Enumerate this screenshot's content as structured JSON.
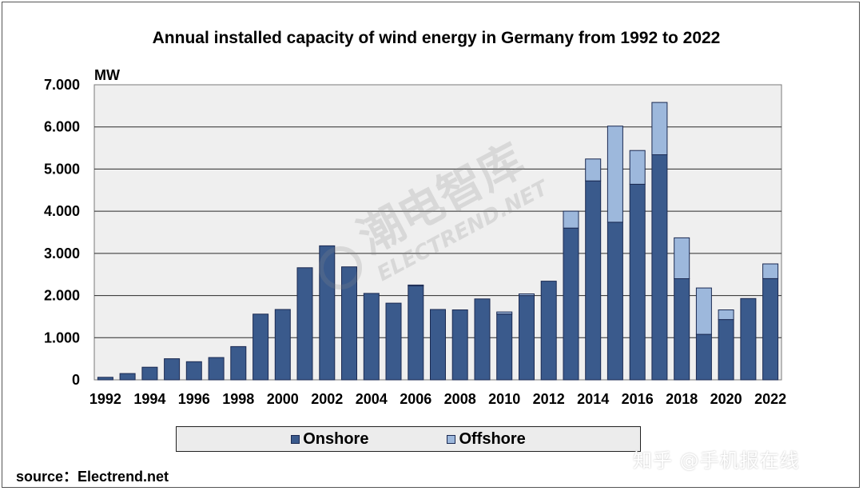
{
  "chart_data": {
    "type": "bar",
    "stacked": true,
    "title": "Annual installed capacity of wind energy in Germany from 1992 to 2022",
    "ylabel": "MW",
    "xlabel": "",
    "ylim": [
      0,
      7000
    ],
    "yticks": [
      0,
      1000,
      2000,
      3000,
      4000,
      5000,
      6000,
      7000
    ],
    "ytick_labels": [
      "0",
      "1.000",
      "2.000",
      "3.000",
      "4.000",
      "5.000",
      "6.000",
      "7.000"
    ],
    "categories": [
      "1992",
      "1993",
      "1994",
      "1995",
      "1996",
      "1997",
      "1998",
      "1999",
      "2000",
      "2001",
      "2002",
      "2003",
      "2004",
      "2005",
      "2006",
      "2007",
      "2008",
      "2009",
      "2010",
      "2011",
      "2012",
      "2013",
      "2014",
      "2015",
      "2016",
      "2017",
      "2018",
      "2019",
      "2020",
      "2021",
      "2022"
    ],
    "xtick_labels": [
      "1992",
      "1994",
      "1996",
      "1998",
      "2000",
      "2002",
      "2004",
      "2006",
      "2008",
      "2010",
      "2012",
      "2014",
      "2016",
      "2018",
      "2020",
      "2022"
    ],
    "series": [
      {
        "name": "Onshore",
        "color": "#3a5a8c",
        "values": [
          60,
          150,
          300,
          500,
          430,
          530,
          790,
          1560,
          1670,
          2660,
          3180,
          2680,
          2050,
          1820,
          2230,
          1670,
          1660,
          1920,
          1560,
          2000,
          2340,
          3600,
          4720,
          3740,
          4640,
          5340,
          2400,
          1080,
          1430,
          1930,
          2400
        ]
      },
      {
        "name": "Offshore",
        "color": "#9db8dc",
        "values": [
          0,
          0,
          0,
          0,
          0,
          0,
          0,
          0,
          0,
          0,
          0,
          0,
          0,
          0,
          20,
          0,
          0,
          0,
          50,
          40,
          0,
          400,
          520,
          2280,
          800,
          1240,
          970,
          1100,
          230,
          0,
          350
        ]
      }
    ],
    "legend": [
      "Onshore",
      "Offshore"
    ],
    "legend_position": "bottom",
    "grid": true
  },
  "source_text": "source：Electrend.net",
  "watermark": {
    "main": "潮电智库",
    "sub": "ELECTREND.NET",
    "corner": "知乎 @手机报在线"
  }
}
